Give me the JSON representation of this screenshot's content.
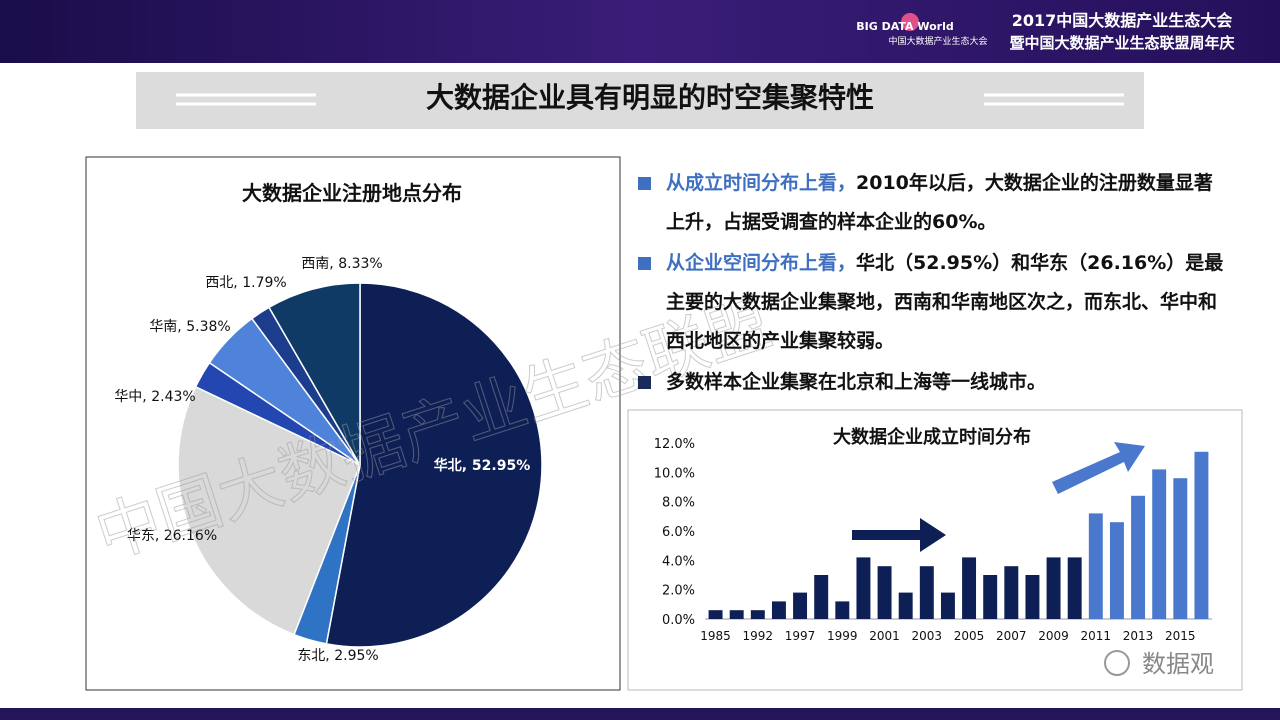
{
  "header": {
    "logo": "BIG DATA World",
    "logo_sub": "中国大数据产业生态大会",
    "event_line1": "2017中国大数据产业生态大会",
    "event_line2": "暨中国大数据产业生态联盟周年庆"
  },
  "title": "大数据企业具有明显的时空集聚特性",
  "bullets": [
    {
      "lead": "从成立时间分布上看，",
      "text": "2010年以后，大数据企业的注册数量显著上升，占据受调查的样本企业的60%。"
    },
    {
      "lead": "从企业空间分布上看，",
      "text": "华北（52.95%）和华东（26.16%）是最主要的大数据企业集聚地，西南和华南地区次之，而东北、华中和西北地区的产业集聚较弱。"
    },
    {
      "text": "多数样本企业集聚在北京和上海等一线城市。"
    }
  ],
  "watermark": "中国大数据产业生态联盟",
  "footer_logo": "数据观",
  "chart_data": [
    {
      "type": "pie",
      "title": "大数据企业注册地点分布",
      "values": [
        52.95,
        2.95,
        26.16,
        2.43,
        5.38,
        1.79,
        8.33
      ],
      "value_labels": [
        "华北, 52.95%",
        "东北, 2.95%",
        "华东, 26.16%",
        "华中, 2.43%",
        "华南, 5.38%",
        "西北, 1.79%",
        "西南, 8.33%"
      ],
      "colors": [
        "#0d1f55",
        "#2f74c4",
        "#d9d9d9",
        "#2346b0",
        "#4f82d9",
        "#1c3c8c",
        "#0f3a66"
      ]
    },
    {
      "type": "bar",
      "title": "大数据企业成立时间分布",
      "categories": [
        "1985",
        null,
        "1992",
        null,
        "1997",
        null,
        "1999",
        null,
        "2001",
        null,
        "2003",
        null,
        "2005",
        null,
        "2007",
        null,
        "2009",
        null,
        "2011",
        null,
        "2013",
        null,
        "2015",
        null
      ],
      "values": [
        0.6,
        0.6,
        0.6,
        1.2,
        1.8,
        3.0,
        1.2,
        4.2,
        3.6,
        1.8,
        3.6,
        1.8,
        4.2,
        3.0,
        3.6,
        3.0,
        4.2,
        4.2,
        7.2,
        6.6,
        8.4,
        10.2,
        9.6,
        11.4
      ],
      "colors": [
        "#0d1f55",
        "#0d1f55",
        "#0d1f55",
        "#0d1f55",
        "#0d1f55",
        "#0d1f55",
        "#0d1f55",
        "#0d1f55",
        "#0d1f55",
        "#0d1f55",
        "#0d1f55",
        "#0d1f55",
        "#0d1f55",
        "#0d1f55",
        "#0d1f55",
        "#0d1f55",
        "#0d1f55",
        "#0d1f55",
        "#4a78cc",
        "#4a78cc",
        "#4a78cc",
        "#4a78cc",
        "#4a78cc",
        "#4a78cc"
      ],
      "ylim": [
        0,
        12
      ],
      "yticks": [
        {
          "value": 0,
          "label": "0.0%"
        },
        {
          "value": 2,
          "label": "2.0%"
        },
        {
          "value": 4,
          "label": "4.0%"
        },
        {
          "value": 6,
          "label": "6.0%"
        },
        {
          "value": 8,
          "label": "8.0%"
        },
        {
          "value": 10,
          "label": "10.0%"
        },
        {
          "value": 12,
          "label": "12.0%"
        }
      ]
    }
  ]
}
